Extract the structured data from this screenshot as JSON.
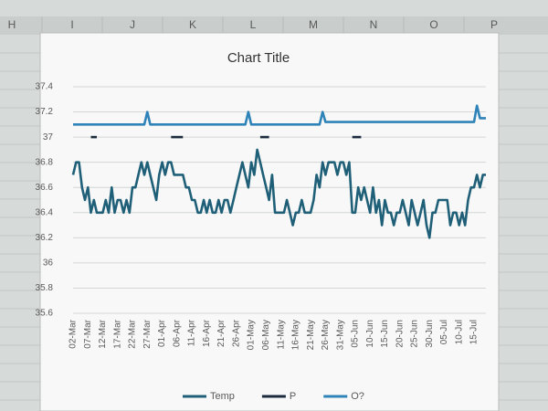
{
  "columns": [
    "H",
    "I",
    "J",
    "K",
    "L",
    "M",
    "N",
    "O",
    "P"
  ],
  "chart_data": {
    "type": "line",
    "title": "Chart Title",
    "categories": [
      "02-Mar",
      null,
      null,
      null,
      null,
      "07-Mar",
      null,
      null,
      null,
      null,
      "12-Mar",
      null,
      null,
      null,
      null,
      "17-Mar",
      null,
      null,
      null,
      null,
      "22-Mar",
      null,
      null,
      null,
      null,
      "27-Mar",
      null,
      null,
      null,
      null,
      "01-Apr",
      null,
      null,
      null,
      null,
      "06-Apr",
      null,
      null,
      null,
      null,
      "11-Apr",
      null,
      null,
      null,
      null,
      "16-Apr",
      null,
      null,
      null,
      null,
      "21-Apr",
      null,
      null,
      null,
      null,
      "26-Apr",
      null,
      null,
      null,
      null,
      "01-May",
      null,
      null,
      null,
      null,
      "06-May",
      null,
      null,
      null,
      null,
      "11-May",
      null,
      null,
      null,
      null,
      "16-May",
      null,
      null,
      null,
      null,
      "21-May",
      null,
      null,
      null,
      null,
      "26-May",
      null,
      null,
      null,
      null,
      "31-May",
      null,
      null,
      null,
      null,
      "05-Jun",
      null,
      null,
      null,
      null,
      "10-Jun",
      null,
      null,
      null,
      null,
      "15-Jun",
      null,
      null,
      null,
      null,
      "20-Jun",
      null,
      null,
      null,
      null,
      "25-Jun",
      null,
      null,
      null,
      null,
      "30-Jun",
      null,
      null,
      null,
      null,
      "05-Jul",
      null,
      null,
      null,
      null,
      "10-Jul",
      null,
      null,
      null,
      null,
      "15-Jul",
      null,
      null,
      null,
      null
    ],
    "series": [
      {
        "name": "Temp",
        "color": "#1f5f78",
        "values": [
          36.7,
          36.8,
          36.8,
          36.6,
          36.5,
          36.6,
          36.4,
          36.5,
          36.4,
          36.4,
          36.4,
          36.5,
          36.4,
          36.6,
          36.4,
          36.5,
          36.5,
          36.4,
          36.5,
          36.4,
          36.6,
          36.6,
          36.7,
          36.8,
          36.7,
          36.8,
          36.7,
          36.6,
          36.5,
          36.7,
          36.8,
          36.7,
          36.8,
          36.8,
          36.7,
          36.7,
          36.7,
          36.7,
          36.6,
          36.6,
          36.5,
          36.5,
          36.4,
          36.4,
          36.5,
          36.4,
          36.5,
          36.4,
          36.4,
          36.5,
          36.4,
          36.5,
          36.5,
          36.4,
          36.5,
          36.6,
          36.7,
          36.8,
          36.7,
          36.6,
          36.8,
          36.7,
          36.9,
          36.8,
          36.7,
          36.6,
          36.5,
          36.7,
          36.4,
          36.4,
          36.4,
          36.4,
          36.5,
          36.4,
          36.3,
          36.4,
          36.4,
          36.5,
          36.4,
          36.4,
          36.4,
          36.5,
          36.7,
          36.6,
          36.8,
          36.7,
          36.8,
          36.8,
          36.8,
          36.7,
          36.8,
          36.8,
          36.7,
          36.8,
          36.4,
          36.4,
          36.6,
          36.5,
          36.6,
          36.5,
          36.4,
          36.6,
          36.4,
          36.5,
          36.3,
          36.5,
          36.4,
          36.4,
          36.3,
          36.4,
          36.4,
          36.5,
          36.4,
          36.3,
          36.5,
          36.4,
          36.3,
          36.4,
          36.5,
          36.3,
          36.2,
          36.4,
          36.4,
          36.5,
          36.5,
          36.5,
          36.5,
          36.3,
          36.4,
          36.4,
          36.3,
          36.4,
          36.3,
          36.5,
          36.6,
          36.6,
          36.7,
          36.6,
          36.7,
          36.7
        ]
      },
      {
        "name": "P",
        "color": "#1b2a3c",
        "values": [
          null,
          null,
          null,
          null,
          null,
          null,
          37,
          37,
          37,
          null,
          null,
          null,
          null,
          null,
          null,
          null,
          null,
          null,
          null,
          null,
          null,
          null,
          null,
          null,
          null,
          null,
          null,
          null,
          null,
          null,
          null,
          null,
          null,
          37,
          37,
          37,
          37,
          37,
          null,
          null,
          null,
          null,
          null,
          null,
          null,
          null,
          null,
          null,
          null,
          null,
          null,
          null,
          null,
          null,
          null,
          null,
          null,
          null,
          null,
          null,
          null,
          null,
          null,
          37,
          37,
          37,
          37,
          null,
          null,
          null,
          null,
          null,
          null,
          null,
          null,
          null,
          null,
          null,
          null,
          null,
          null,
          null,
          null,
          null,
          null,
          null,
          null,
          null,
          null,
          null,
          null,
          null,
          null,
          null,
          37,
          37,
          37,
          37,
          null,
          null,
          null,
          null,
          null,
          null,
          null,
          null,
          null,
          null,
          null,
          null,
          null,
          null,
          null,
          null,
          null,
          null,
          null,
          null,
          null,
          null,
          null,
          null,
          null,
          null,
          null,
          null,
          null,
          null,
          null,
          null,
          null,
          null,
          null,
          null,
          null,
          null,
          null,
          null,
          null,
          null
        ]
      },
      {
        "name": "O?",
        "color": "#2f83b8",
        "values": [
          37.1,
          37.1,
          37.1,
          37.1,
          37.1,
          37.1,
          37.1,
          37.1,
          37.1,
          37.1,
          37.1,
          37.1,
          37.1,
          37.1,
          37.1,
          37.1,
          37.1,
          37.1,
          37.1,
          37.1,
          37.1,
          37.1,
          37.1,
          37.1,
          37.1,
          37.2,
          37.1,
          37.1,
          37.1,
          37.1,
          37.1,
          37.1,
          37.1,
          37.1,
          37.1,
          37.1,
          37.1,
          37.1,
          37.1,
          37.1,
          37.1,
          37.1,
          37.1,
          37.1,
          37.1,
          37.1,
          37.1,
          37.1,
          37.1,
          37.1,
          37.1,
          37.1,
          37.1,
          37.1,
          37.1,
          37.1,
          37.1,
          37.1,
          37.1,
          37.2,
          37.1,
          37.1,
          37.1,
          37.1,
          37.1,
          37.1,
          37.1,
          37.1,
          37.1,
          37.1,
          37.1,
          37.1,
          37.1,
          37.1,
          37.1,
          37.1,
          37.1,
          37.1,
          37.1,
          37.1,
          37.1,
          37.1,
          37.1,
          37.1,
          37.2,
          37.12,
          37.12,
          37.12,
          37.12,
          37.12,
          37.12,
          37.12,
          37.12,
          37.12,
          37.12,
          37.12,
          37.12,
          37.12,
          37.12,
          37.12,
          37.12,
          37.12,
          37.12,
          37.12,
          37.12,
          37.12,
          37.12,
          37.12,
          37.12,
          37.12,
          37.12,
          37.12,
          37.12,
          37.12,
          37.12,
          37.12,
          37.12,
          37.12,
          37.12,
          37.12,
          37.12,
          37.12,
          37.12,
          37.12,
          37.12,
          37.12,
          37.12,
          37.12,
          37.12,
          37.12,
          37.12,
          37.12,
          37.12,
          37.12,
          37.12,
          37.12,
          37.25,
          37.15,
          37.15,
          37.15
        ]
      }
    ],
    "ylim": [
      35.6,
      37.4
    ],
    "yticks": [
      35.6,
      35.8,
      36,
      36.2,
      36.4,
      36.6,
      36.8,
      37,
      37.2,
      37.4
    ],
    "grid": true,
    "legend": "bottom"
  }
}
